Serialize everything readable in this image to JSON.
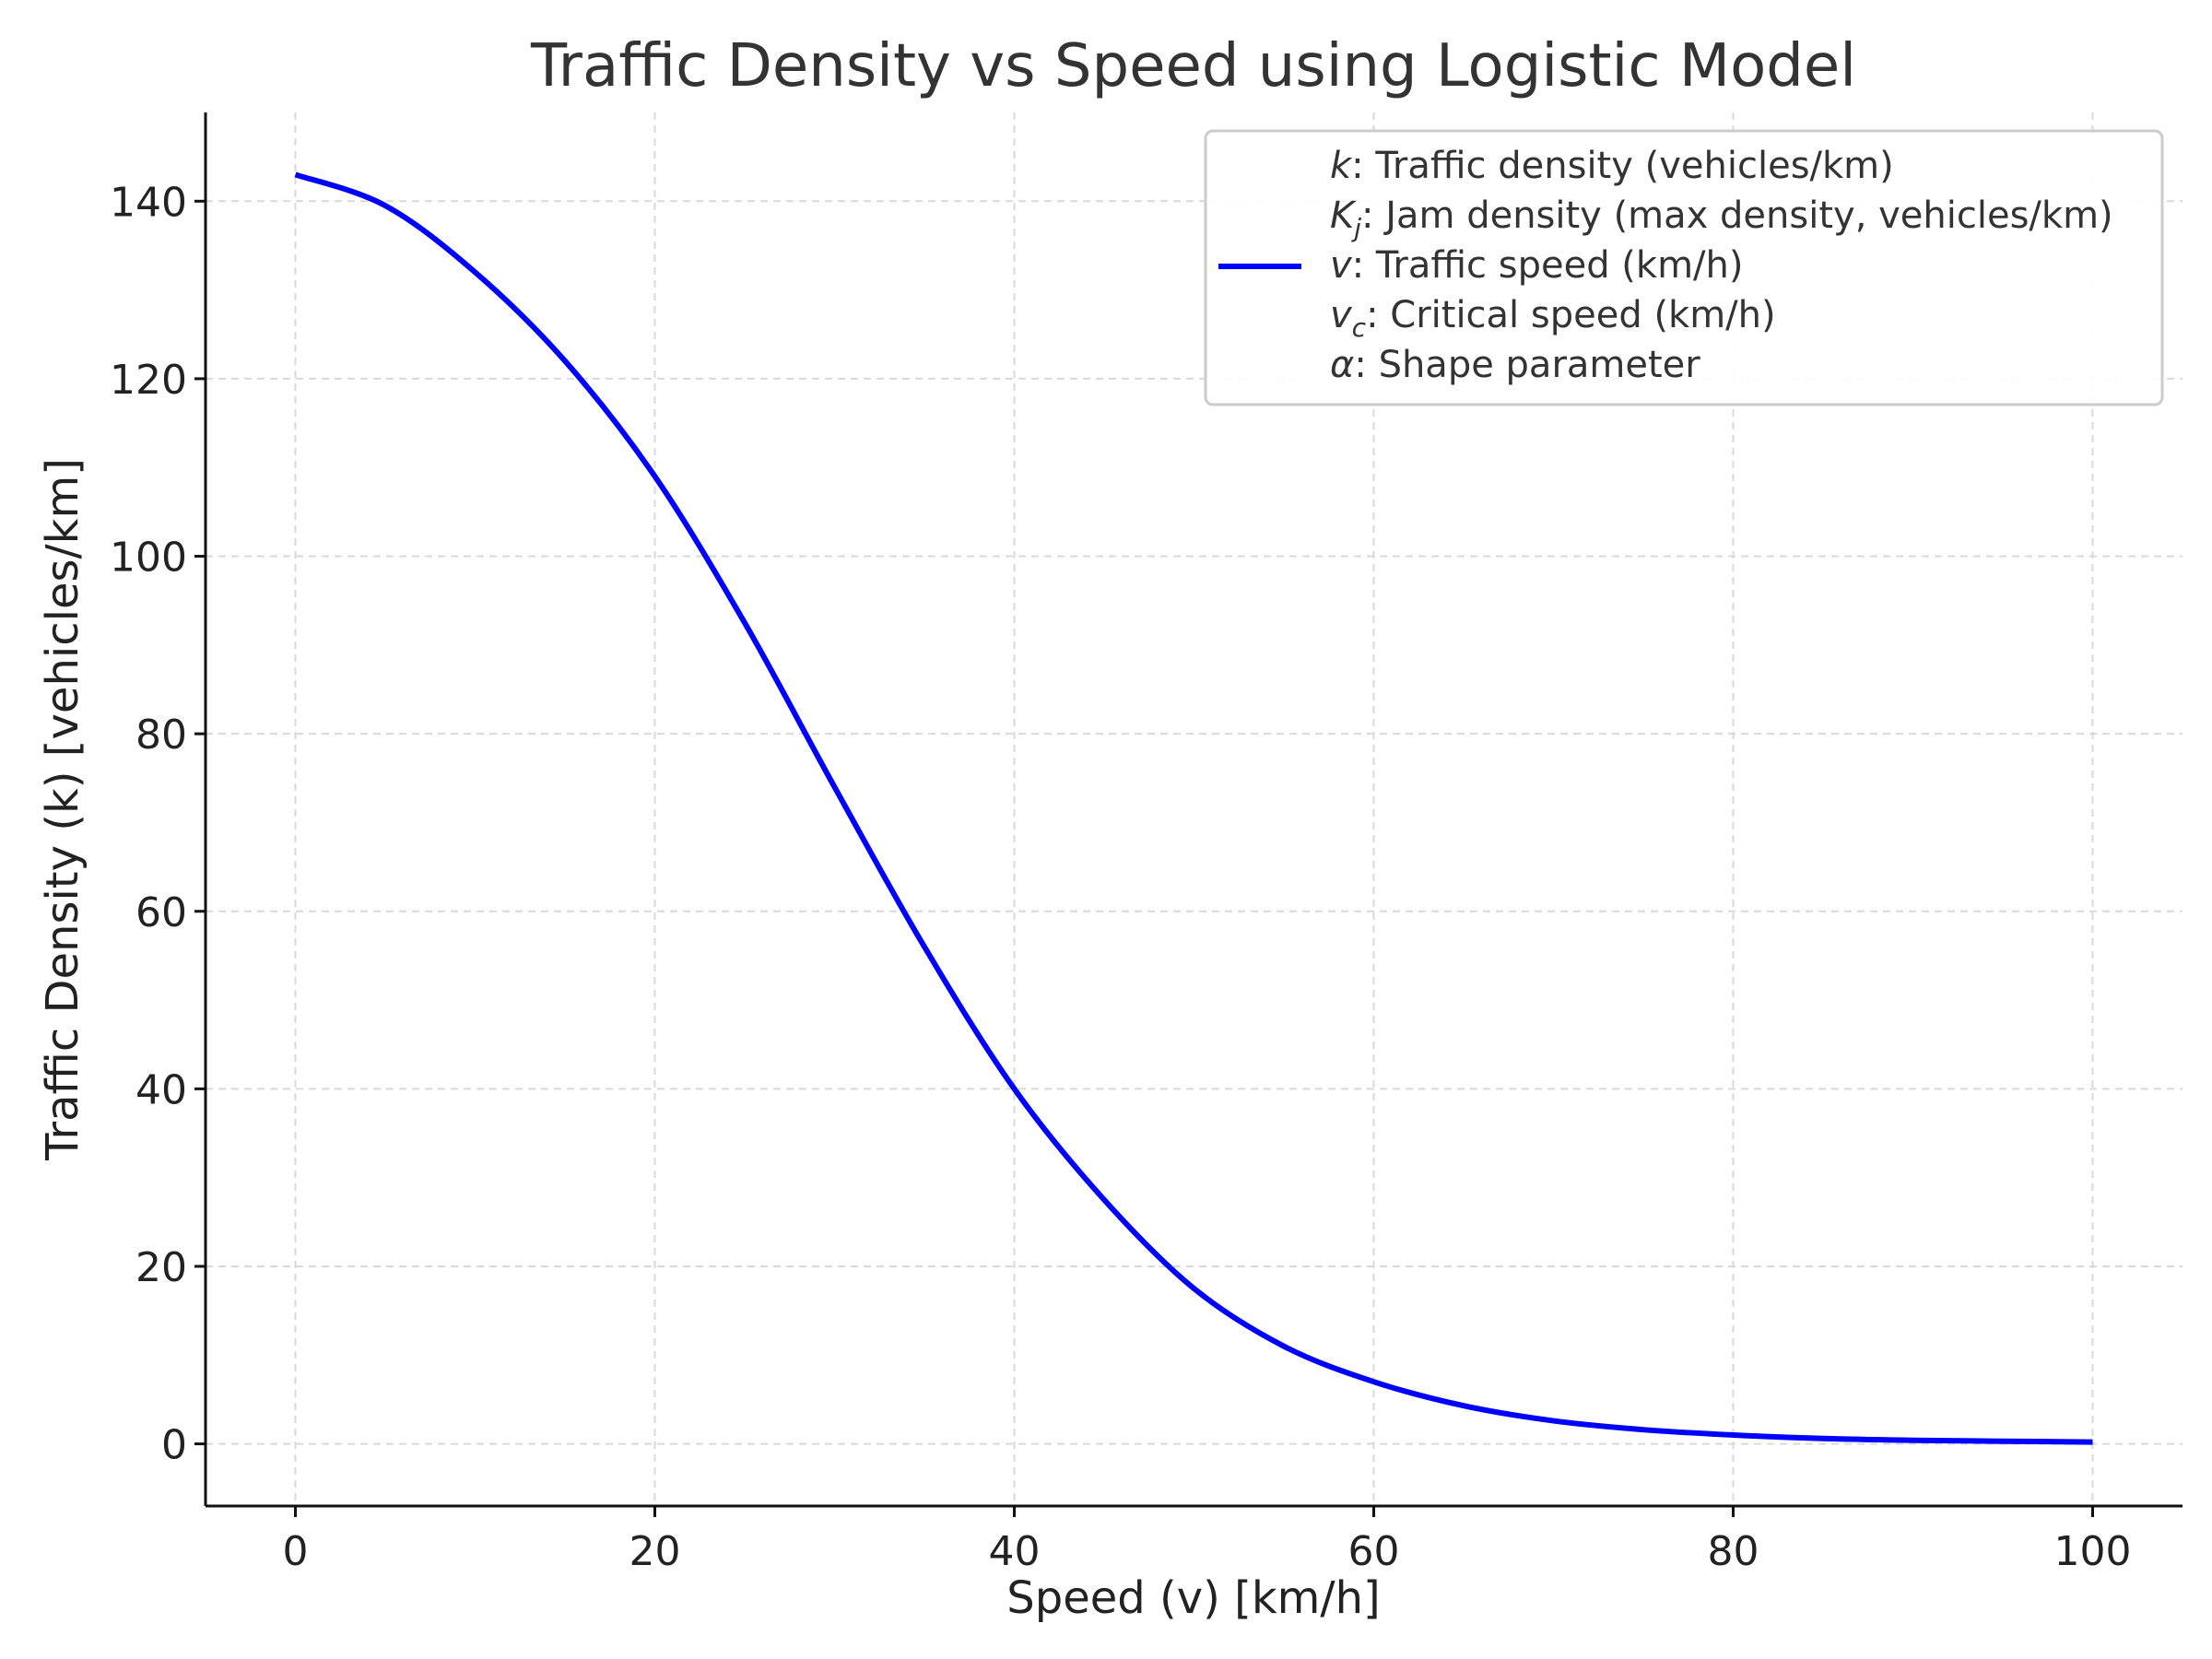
{
  "chart_data": {
    "type": "line",
    "title": "Traffic Density vs Speed using Logistic Model",
    "xlabel": "Speed (v) [km/h]",
    "ylabel": "Traffic Density (k) [vehicles/km]",
    "xlim": [
      -5,
      105
    ],
    "ylim": [
      -7,
      150
    ],
    "xticks": [
      0,
      20,
      40,
      60,
      80,
      100
    ],
    "yticks": [
      0,
      20,
      40,
      60,
      80,
      100,
      120,
      140
    ],
    "grid": true,
    "legend_position": "top-right",
    "legend": [
      {
        "var": "k",
        "sub": "",
        "text": ": Traffic density (vehicles/km)",
        "has_line": false
      },
      {
        "var": "K",
        "sub": "j",
        "text": ": Jam density (max density, vehicles/km)",
        "has_line": false
      },
      {
        "var": "v",
        "sub": "",
        "text": ": Traffic speed (km/h)",
        "has_line": true
      },
      {
        "var": "v",
        "sub": "c",
        "text": ": Critical speed (km/h)",
        "has_line": false
      },
      {
        "var": "α",
        "sub": "",
        "text": ": Shape parameter",
        "has_line": false
      }
    ],
    "series": [
      {
        "color": "#0000ff",
        "x": [
          0,
          5,
          10,
          15,
          20,
          25,
          30,
          35,
          40,
          45,
          50,
          55,
          60,
          65,
          70,
          75,
          80,
          85,
          90,
          95,
          100
        ],
        "y": [
          143,
          139.5,
          132,
          122,
          109,
          92.5,
          74,
          56,
          40,
          27.5,
          17.5,
          11,
          7,
          4.3,
          2.6,
          1.6,
          1,
          0.6,
          0.4,
          0.3,
          0.2
        ]
      }
    ]
  }
}
